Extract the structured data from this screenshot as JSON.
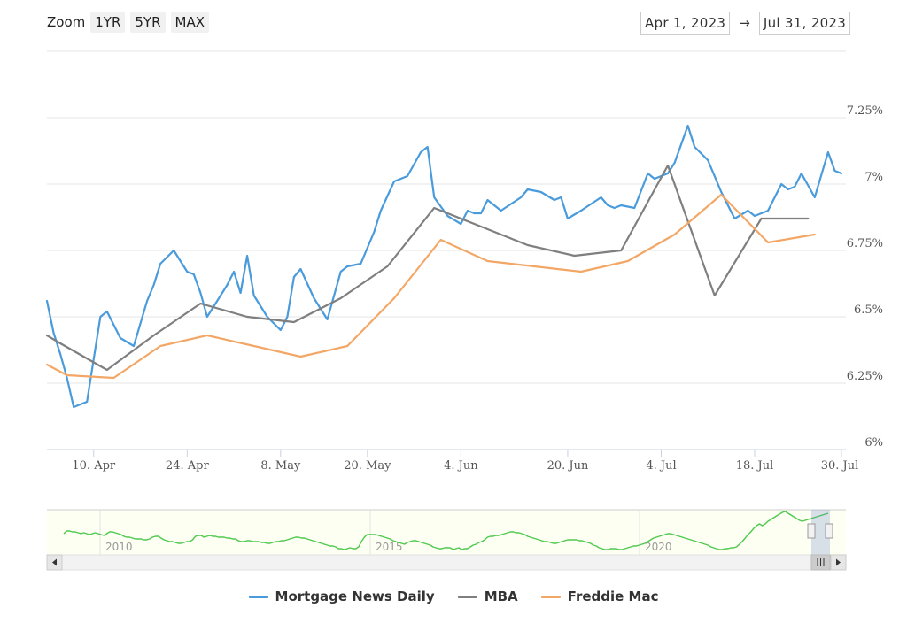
{
  "zoom": {
    "label": "Zoom",
    "buttons": [
      "1YR",
      "5YR",
      "MAX"
    ]
  },
  "range": {
    "from": "Apr 1, 2023",
    "arrow": "→",
    "to": "Jul 31, 2023"
  },
  "navigator": {
    "labels": [
      "2010",
      "2015",
      "2020"
    ]
  },
  "colors": {
    "mnd": "#4a9bdc",
    "mba": "#7f7f7f",
    "freddie": "#f3a766",
    "navigator": "#4ec94e",
    "grid": "#e6e6e6"
  },
  "chart_data": {
    "type": "line",
    "x_range": [
      "2023-04-03",
      "2023-07-31"
    ],
    "x_ticks": [
      "10. Apr",
      "24. Apr",
      "8. May",
      "20. May",
      "4. Jun",
      "20. Jun",
      "4. Jul",
      "18. Jul",
      "30. Jul"
    ],
    "y_range": [
      6.0,
      7.5
    ],
    "y_ticks": [
      "6%",
      "6.25%",
      "6.5%",
      "6.75%",
      "7%",
      "7.25%"
    ],
    "grid": true,
    "legend_position": "bottom",
    "series": [
      {
        "name": "Mortgage News Daily",
        "color": "#4a9bdc",
        "points": [
          [
            "2023-04-03",
            6.56
          ],
          [
            "2023-04-04",
            6.44
          ],
          [
            "2023-04-05",
            6.36
          ],
          [
            "2023-04-06",
            6.27
          ],
          [
            "2023-04-07",
            6.16
          ],
          [
            "2023-04-09",
            6.18
          ],
          [
            "2023-04-11",
            6.5
          ],
          [
            "2023-04-12",
            6.52
          ],
          [
            "2023-04-14",
            6.42
          ],
          [
            "2023-04-16",
            6.39
          ],
          [
            "2023-04-18",
            6.56
          ],
          [
            "2023-04-19",
            6.62
          ],
          [
            "2023-04-20",
            6.7
          ],
          [
            "2023-04-22",
            6.75
          ],
          [
            "2023-04-24",
            6.67
          ],
          [
            "2023-04-25",
            6.66
          ],
          [
            "2023-04-26",
            6.59
          ],
          [
            "2023-04-27",
            6.5
          ],
          [
            "2023-04-30",
            6.62
          ],
          [
            "2023-05-01",
            6.67
          ],
          [
            "2023-05-02",
            6.59
          ],
          [
            "2023-05-03",
            6.73
          ],
          [
            "2023-05-04",
            6.58
          ],
          [
            "2023-05-06",
            6.5
          ],
          [
            "2023-05-08",
            6.45
          ],
          [
            "2023-05-09",
            6.5
          ],
          [
            "2023-05-10",
            6.65
          ],
          [
            "2023-05-11",
            6.68
          ],
          [
            "2023-05-13",
            6.57
          ],
          [
            "2023-05-15",
            6.49
          ],
          [
            "2023-05-17",
            6.67
          ],
          [
            "2023-05-18",
            6.69
          ],
          [
            "2023-05-20",
            6.7
          ],
          [
            "2023-05-22",
            6.82
          ],
          [
            "2023-05-23",
            6.9
          ],
          [
            "2023-05-25",
            7.01
          ],
          [
            "2023-05-27",
            7.03
          ],
          [
            "2023-05-29",
            7.12
          ],
          [
            "2023-05-30",
            7.14
          ],
          [
            "2023-05-31",
            6.95
          ],
          [
            "2023-06-02",
            6.88
          ],
          [
            "2023-06-04",
            6.85
          ],
          [
            "2023-06-05",
            6.9
          ],
          [
            "2023-06-06",
            6.89
          ],
          [
            "2023-06-07",
            6.89
          ],
          [
            "2023-06-08",
            6.94
          ],
          [
            "2023-06-10",
            6.9
          ],
          [
            "2023-06-13",
            6.95
          ],
          [
            "2023-06-14",
            6.98
          ],
          [
            "2023-06-16",
            6.97
          ],
          [
            "2023-06-18",
            6.94
          ],
          [
            "2023-06-19",
            6.95
          ],
          [
            "2023-06-20",
            6.87
          ],
          [
            "2023-06-22",
            6.9
          ],
          [
            "2023-06-25",
            6.95
          ],
          [
            "2023-06-26",
            6.92
          ],
          [
            "2023-06-27",
            6.91
          ],
          [
            "2023-06-28",
            6.92
          ],
          [
            "2023-06-30",
            6.91
          ],
          [
            "2023-07-02",
            7.04
          ],
          [
            "2023-07-03",
            7.02
          ],
          [
            "2023-07-05",
            7.04
          ],
          [
            "2023-07-06",
            7.08
          ],
          [
            "2023-07-08",
            7.22
          ],
          [
            "2023-07-09",
            7.14
          ],
          [
            "2023-07-11",
            7.09
          ],
          [
            "2023-07-13",
            6.97
          ],
          [
            "2023-07-15",
            6.87
          ],
          [
            "2023-07-17",
            6.9
          ],
          [
            "2023-07-18",
            6.88
          ],
          [
            "2023-07-20",
            6.9
          ],
          [
            "2023-07-22",
            7.0
          ],
          [
            "2023-07-23",
            6.98
          ],
          [
            "2023-07-24",
            6.99
          ],
          [
            "2023-07-25",
            7.04
          ],
          [
            "2023-07-27",
            6.95
          ],
          [
            "2023-07-29",
            7.12
          ],
          [
            "2023-07-30",
            7.05
          ],
          [
            "2023-07-31",
            7.04
          ]
        ]
      },
      {
        "name": "MBA",
        "color": "#7f7f7f",
        "points": [
          [
            "2023-04-03",
            6.43
          ],
          [
            "2023-04-05",
            6.4
          ],
          [
            "2023-04-12",
            6.3
          ],
          [
            "2023-04-19",
            6.43
          ],
          [
            "2023-04-26",
            6.55
          ],
          [
            "2023-05-03",
            6.5
          ],
          [
            "2023-05-10",
            6.48
          ],
          [
            "2023-05-17",
            6.57
          ],
          [
            "2023-05-24",
            6.69
          ],
          [
            "2023-05-31",
            6.91
          ],
          [
            "2023-06-07",
            6.84
          ],
          [
            "2023-06-14",
            6.77
          ],
          [
            "2023-06-21",
            6.73
          ],
          [
            "2023-06-28",
            6.75
          ],
          [
            "2023-07-05",
            7.07
          ],
          [
            "2023-07-12",
            6.58
          ],
          [
            "2023-07-19",
            6.87
          ],
          [
            "2023-07-26",
            6.87
          ]
        ]
      },
      {
        "name": "Freddie Mac",
        "color": "#f3a766",
        "points": [
          [
            "2023-04-03",
            6.32
          ],
          [
            "2023-04-06",
            6.28
          ],
          [
            "2023-04-13",
            6.27
          ],
          [
            "2023-04-20",
            6.39
          ],
          [
            "2023-04-27",
            6.43
          ],
          [
            "2023-05-04",
            6.39
          ],
          [
            "2023-05-11",
            6.35
          ],
          [
            "2023-05-18",
            6.39
          ],
          [
            "2023-05-25",
            6.57
          ],
          [
            "2023-06-01",
            6.79
          ],
          [
            "2023-06-08",
            6.71
          ],
          [
            "2023-06-15",
            6.69
          ],
          [
            "2023-06-22",
            6.67
          ],
          [
            "2023-06-29",
            6.71
          ],
          [
            "2023-07-06",
            6.81
          ],
          [
            "2023-07-13",
            6.96
          ],
          [
            "2023-07-20",
            6.78
          ],
          [
            "2023-07-27",
            6.81
          ]
        ]
      }
    ]
  },
  "legend": [
    "Mortgage News Daily",
    "MBA",
    "Freddie Mac"
  ]
}
